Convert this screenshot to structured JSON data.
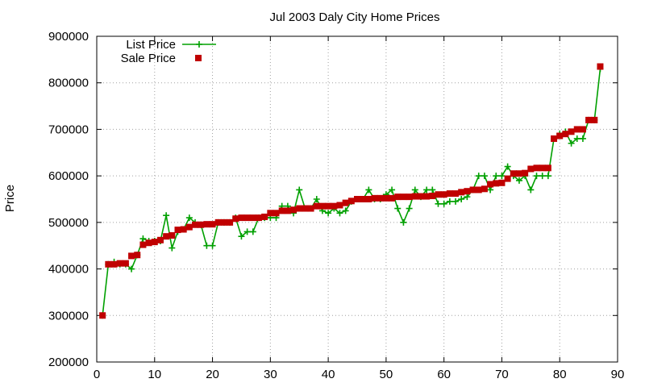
{
  "chart_data": {
    "type": "line",
    "title": "Jul 2003 Daly City Home Prices",
    "xlabel": "",
    "ylabel": "Price",
    "xlim": [
      0,
      90
    ],
    "ylim": [
      200000,
      900000
    ],
    "xticks": [
      0,
      10,
      20,
      30,
      40,
      50,
      60,
      70,
      80,
      90
    ],
    "yticks": [
      200000,
      300000,
      400000,
      500000,
      600000,
      700000,
      800000,
      900000
    ],
    "grid": true,
    "legend_position": "top-left",
    "series": [
      {
        "name": "List Price",
        "style": "line-plus",
        "color": "#00a000",
        "x": [
          1,
          2,
          3,
          4,
          5,
          6,
          7,
          8,
          9,
          10,
          11,
          12,
          13,
          14,
          15,
          16,
          17,
          18,
          19,
          20,
          21,
          22,
          23,
          24,
          25,
          26,
          27,
          28,
          29,
          30,
          31,
          32,
          33,
          34,
          35,
          36,
          37,
          38,
          39,
          40,
          41,
          42,
          43,
          44,
          45,
          46,
          47,
          48,
          49,
          50,
          51,
          52,
          53,
          54,
          55,
          56,
          57,
          58,
          59,
          60,
          61,
          62,
          63,
          64,
          65,
          66,
          67,
          68,
          69,
          70,
          71,
          72,
          73,
          74,
          75,
          76,
          77,
          78,
          79,
          80,
          81,
          82,
          83,
          84,
          85,
          86,
          87
        ],
        "values": [
          300000,
          410000,
          415000,
          410000,
          410000,
          400000,
          430000,
          465000,
          460000,
          460000,
          460000,
          515000,
          445000,
          480000,
          485000,
          510000,
          500000,
          495000,
          450000,
          450000,
          500000,
          500000,
          500000,
          510000,
          470000,
          480000,
          480000,
          510000,
          510000,
          510000,
          510000,
          535000,
          535000,
          520000,
          570000,
          530000,
          530000,
          550000,
          525000,
          520000,
          530000,
          520000,
          525000,
          545000,
          550000,
          550000,
          570000,
          550000,
          550000,
          560000,
          570000,
          530000,
          500000,
          530000,
          570000,
          555000,
          570000,
          570000,
          540000,
          540000,
          545000,
          545000,
          550000,
          555000,
          570000,
          600000,
          600000,
          570000,
          600000,
          600000,
          620000,
          600000,
          590000,
          600000,
          570000,
          600000,
          600000,
          600000,
          680000,
          690000,
          695000,
          670000,
          680000,
          680000,
          720000,
          720000,
          830000
        ]
      },
      {
        "name": "Sale Price",
        "style": "points-square",
        "color": "#c00000",
        "x": [
          1,
          2,
          3,
          4,
          5,
          6,
          7,
          8,
          9,
          10,
          11,
          12,
          13,
          14,
          15,
          16,
          17,
          18,
          19,
          20,
          21,
          22,
          23,
          24,
          25,
          26,
          27,
          28,
          29,
          30,
          31,
          32,
          33,
          34,
          35,
          36,
          37,
          38,
          39,
          40,
          41,
          42,
          43,
          44,
          45,
          46,
          47,
          48,
          49,
          50,
          51,
          52,
          53,
          54,
          55,
          56,
          57,
          58,
          59,
          60,
          61,
          62,
          63,
          64,
          65,
          66,
          67,
          68,
          69,
          70,
          71,
          72,
          73,
          74,
          75,
          76,
          77,
          78,
          79,
          80,
          81,
          82,
          83,
          84,
          85,
          86,
          87
        ],
        "values": [
          300000,
          410000,
          410000,
          412000,
          412000,
          428000,
          430000,
          452000,
          456000,
          458000,
          462000,
          470000,
          472000,
          484000,
          485000,
          490000,
          495000,
          495000,
          496000,
          496000,
          500000,
          500000,
          500000,
          508000,
          510000,
          510000,
          510000,
          510000,
          512000,
          520000,
          520000,
          525000,
          525000,
          527000,
          530000,
          530000,
          530000,
          535000,
          535000,
          535000,
          535000,
          537000,
          542000,
          546000,
          550000,
          550000,
          550000,
          552000,
          552000,
          552000,
          552000,
          555000,
          555000,
          555000,
          556000,
          556000,
          556000,
          557000,
          560000,
          560000,
          562000,
          562000,
          565000,
          567000,
          570000,
          570000,
          572000,
          582000,
          584000,
          585000,
          594000,
          605000,
          605000,
          606000,
          615000,
          617000,
          617000,
          617000,
          680000,
          686000,
          690000,
          695000,
          700000,
          700000,
          720000,
          720000,
          835000
        ]
      }
    ]
  }
}
